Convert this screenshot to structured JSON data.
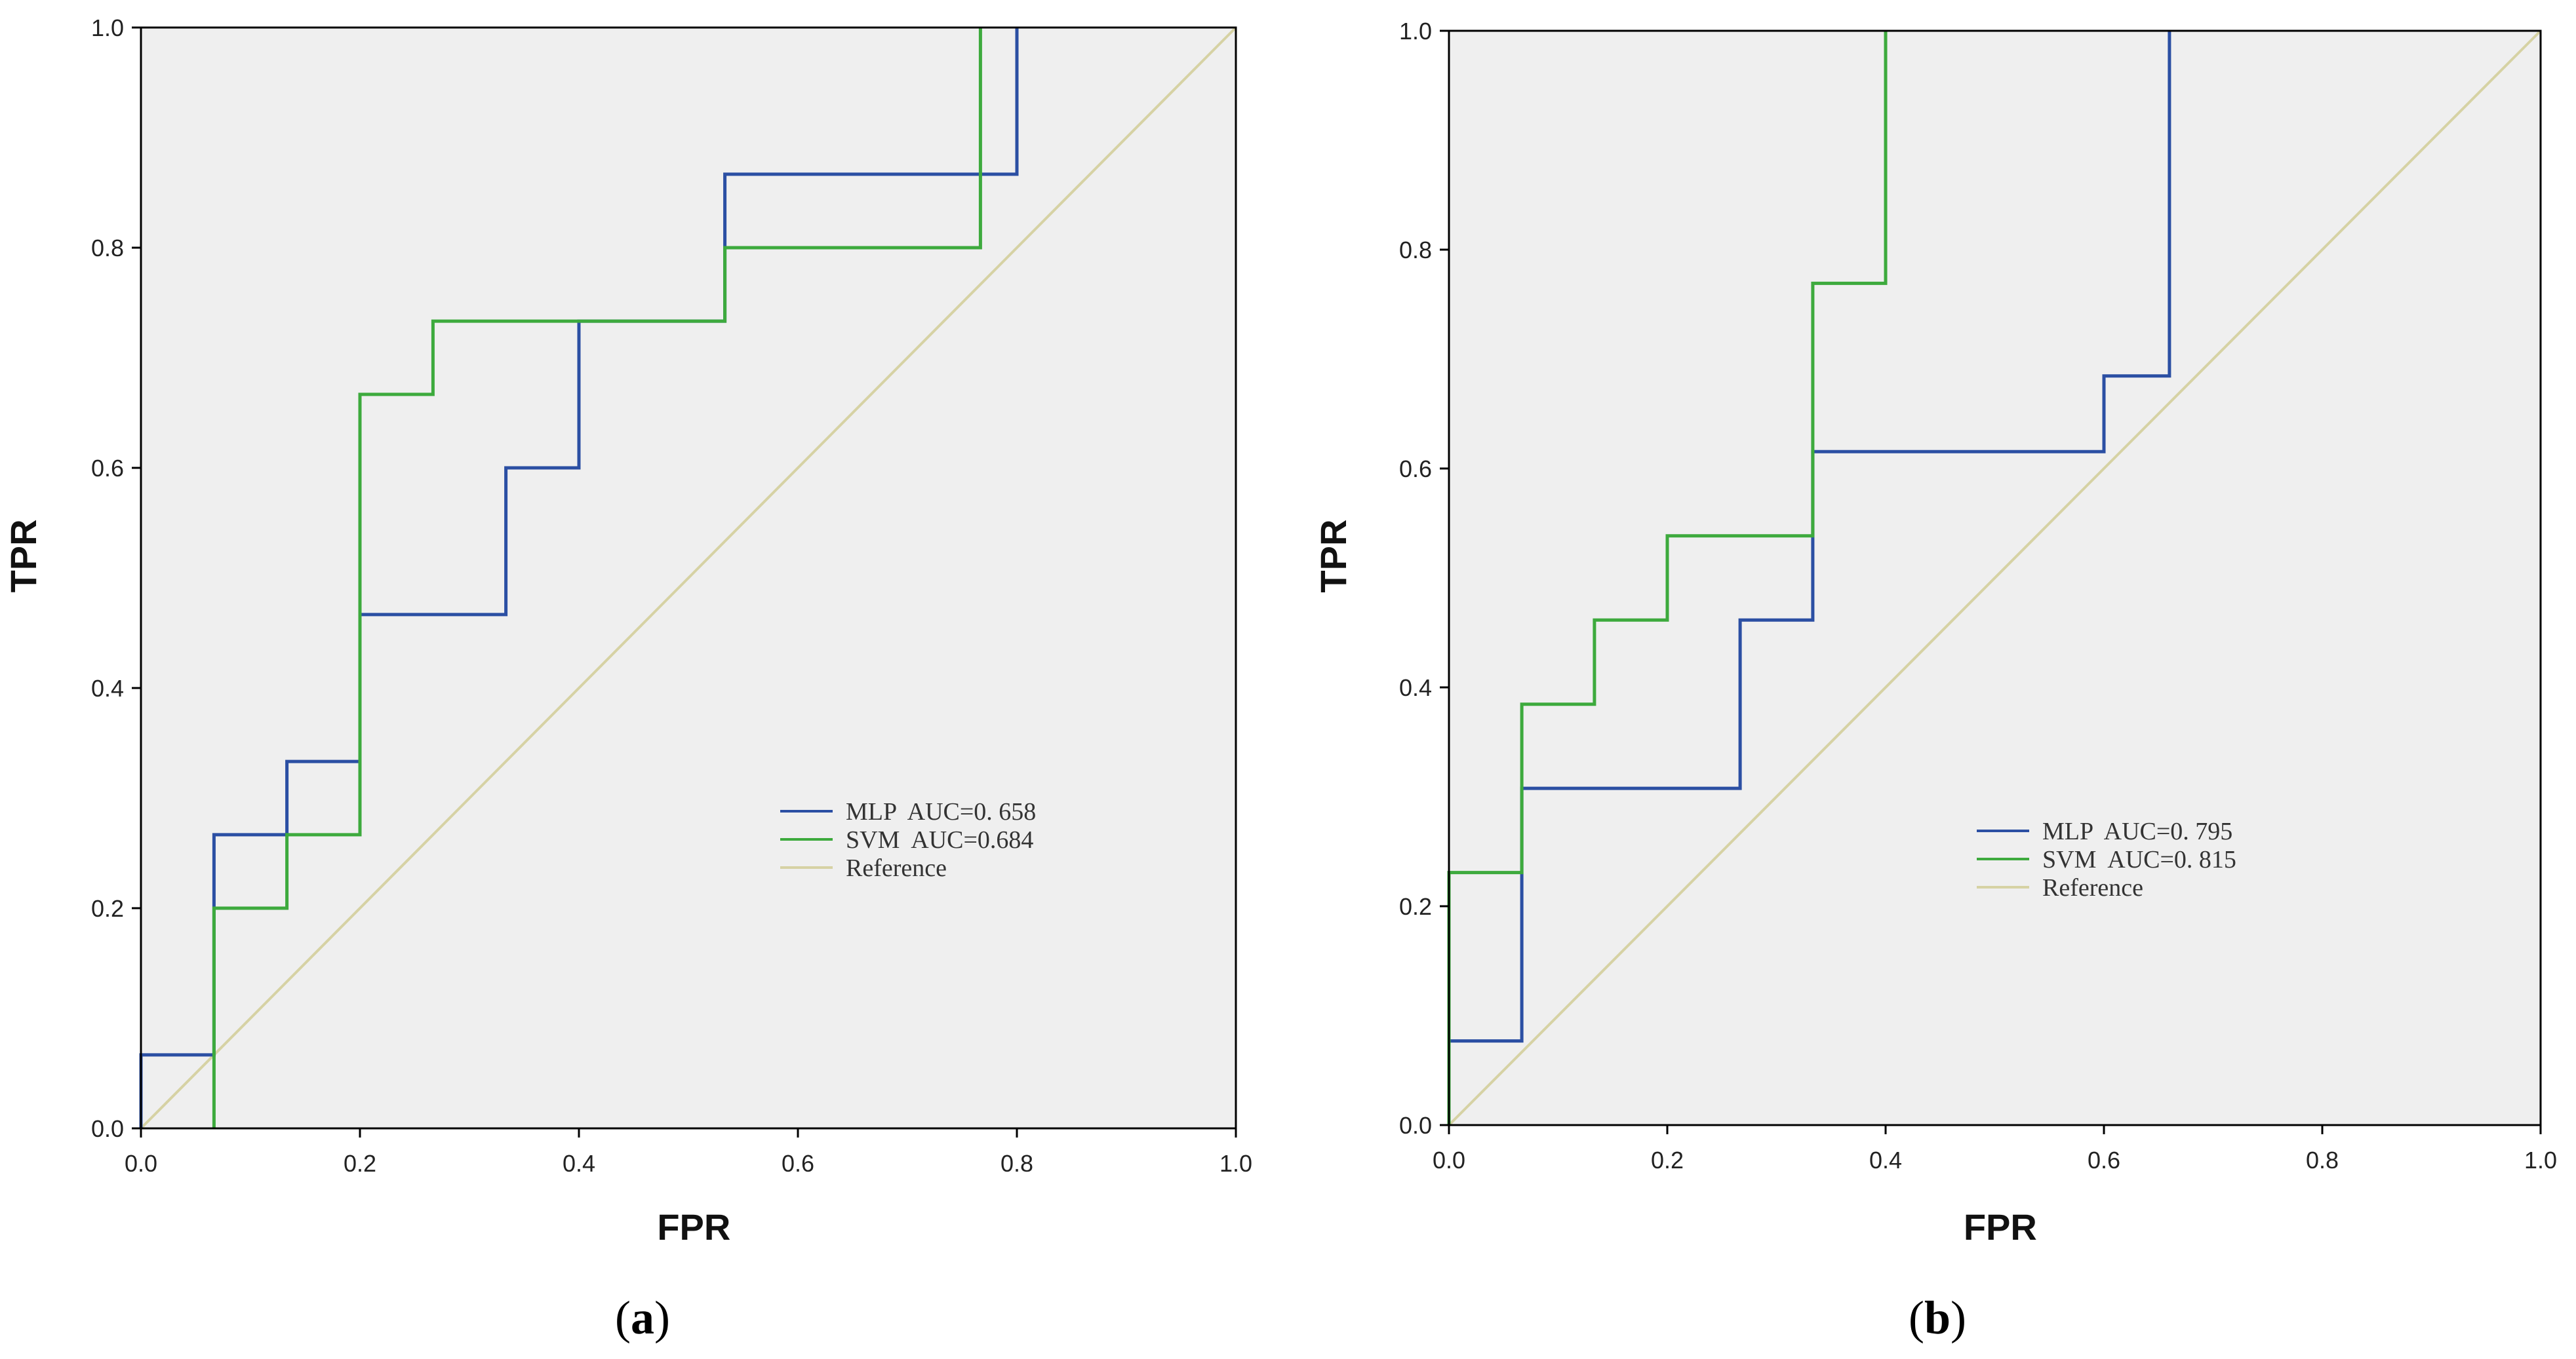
{
  "colors": {
    "mlp": "#2b4fa3",
    "svm": "#3daa3d",
    "reference": "#d6d2a4",
    "plot_background": "#efefef",
    "frame": "#000000"
  },
  "chart_data": [
    {
      "type": "line",
      "caption": {
        "open": "(",
        "letter": "a",
        "close": ")"
      },
      "xlabel": "FPR",
      "ylabel": "TPR",
      "xlim": [
        0,
        1
      ],
      "ylim": [
        0,
        1
      ],
      "ticks": [
        "0.0",
        "0.2",
        "0.4",
        "0.6",
        "0.8",
        "1.0"
      ],
      "grid": false,
      "legend_position": "center-right",
      "series": [
        {
          "name": "MLP",
          "label": "MLP  AUC=0. 658",
          "x": [
            0,
            0,
            0.0667,
            0.0667,
            0.1333,
            0.1333,
            0.2,
            0.2,
            0.3333,
            0.3333,
            0.4,
            0.4,
            0.5333,
            0.5333,
            0.8,
            0.8
          ],
          "y": [
            0,
            0.0667,
            0.0667,
            0.2667,
            0.2667,
            0.3333,
            0.3333,
            0.4667,
            0.4667,
            0.6,
            0.6,
            0.7333,
            0.7333,
            0.8667,
            0.8667,
            1.0
          ]
        },
        {
          "name": "SVM",
          "label": "SVM  AUC=0.684",
          "x": [
            0.0667,
            0.0667,
            0.1333,
            0.1333,
            0.2,
            0.2,
            0.2667,
            0.2667,
            0.5333,
            0.5333,
            0.7667,
            0.7667
          ],
          "y": [
            0,
            0.2,
            0.2,
            0.2667,
            0.2667,
            0.6667,
            0.6667,
            0.7333,
            0.7333,
            0.8,
            0.8,
            1.0
          ]
        },
        {
          "name": "Reference",
          "label": "Reference",
          "x": [
            0,
            1
          ],
          "y": [
            0,
            1
          ]
        }
      ]
    },
    {
      "type": "line",
      "caption": {
        "open": "(",
        "letter": "b",
        "close": ")"
      },
      "xlabel": "FPR",
      "ylabel": "TPR",
      "xlim": [
        0,
        1
      ],
      "ylim": [
        0,
        1
      ],
      "ticks": [
        "0.0",
        "0.2",
        "0.4",
        "0.6",
        "0.8",
        "1.0"
      ],
      "grid": false,
      "legend_position": "center-right",
      "series": [
        {
          "name": "MLP",
          "label": "MLP  AUC=0. 795",
          "x": [
            0,
            0,
            0.0667,
            0.0667,
            0.2667,
            0.2667,
            0.3333,
            0.3333,
            0.6,
            0.6,
            0.66,
            0.66
          ],
          "y": [
            0,
            0.0769,
            0.0769,
            0.3077,
            0.3077,
            0.4615,
            0.4615,
            0.6154,
            0.6154,
            0.6846,
            0.6846,
            1.0
          ]
        },
        {
          "name": "SVM",
          "label": "SVM  AUC=0. 815",
          "x": [
            0,
            0,
            0.0667,
            0.0667,
            0.1333,
            0.1333,
            0.2,
            0.2,
            0.3333,
            0.3333,
            0.4,
            0.4
          ],
          "y": [
            0,
            0.2308,
            0.2308,
            0.3846,
            0.3846,
            0.4615,
            0.4615,
            0.5385,
            0.5385,
            0.7692,
            0.7692,
            1.0
          ]
        },
        {
          "name": "Reference",
          "label": "Reference",
          "x": [
            0,
            1
          ],
          "y": [
            0,
            1
          ]
        }
      ]
    }
  ]
}
